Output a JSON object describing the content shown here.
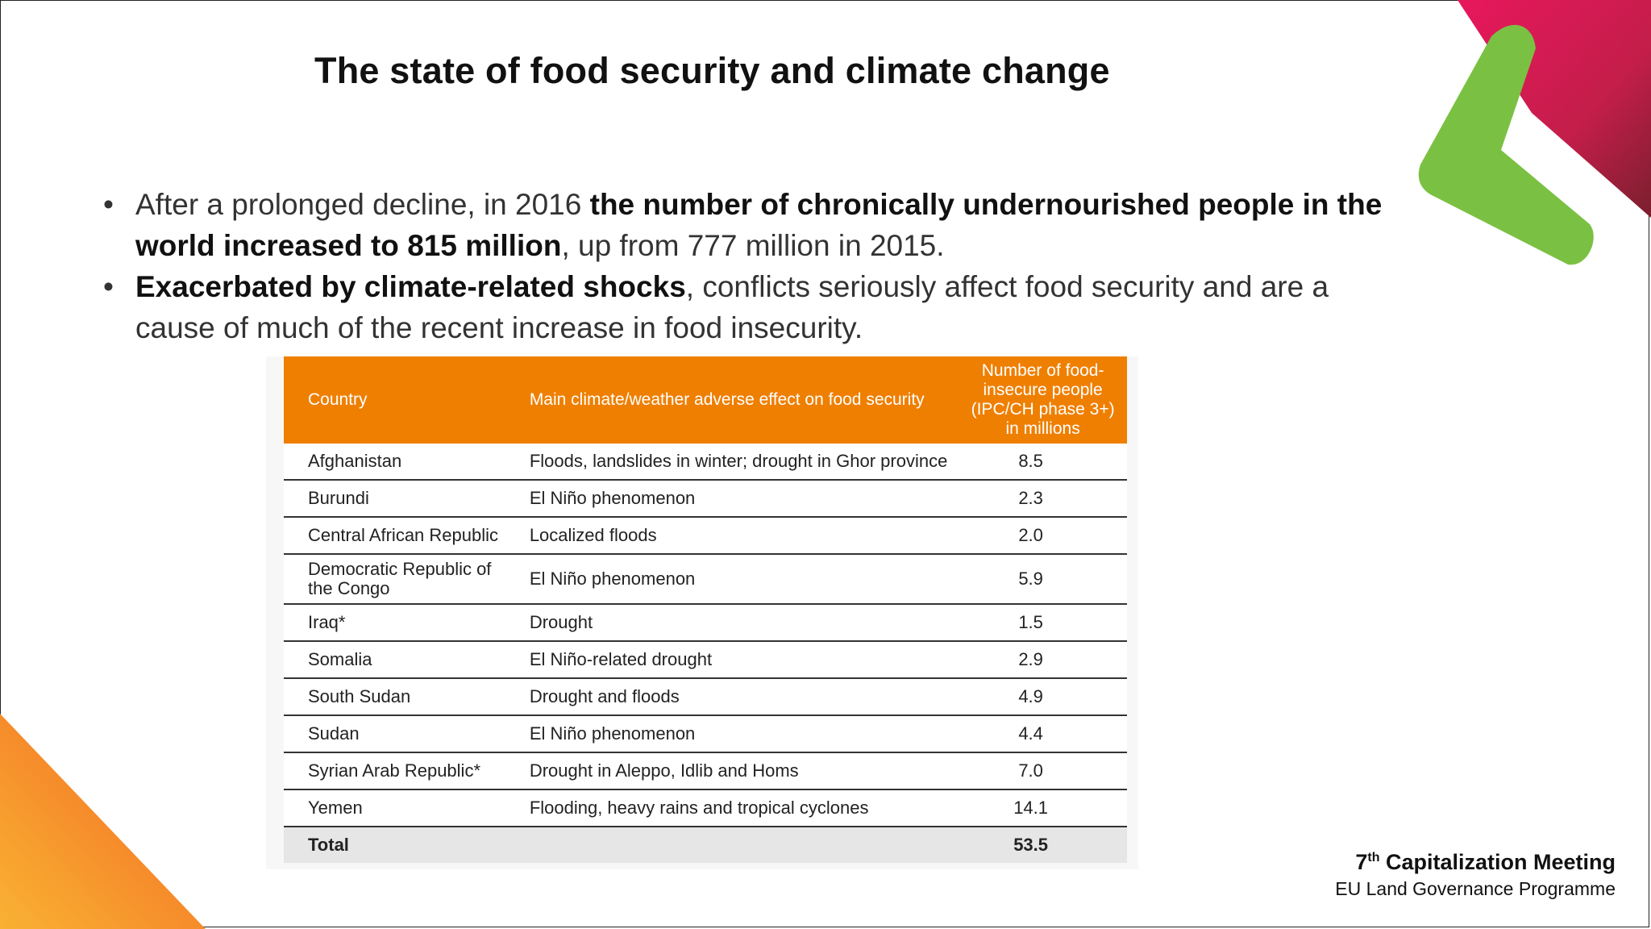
{
  "slide": {
    "title": "The state of food security and climate change",
    "bullets": [
      {
        "pre": "After a prolonged decline, in 2016 ",
        "strong": "the number of chronically undernourished people in the world increased to 815 million",
        "post": ", up from 777 million in 2015."
      },
      {
        "pre": "",
        "strong": "Exacerbated by climate-related shocks",
        "post": ", conflicts seriously affect food security and are a cause of much of the recent increase in food insecurity."
      }
    ]
  },
  "table": {
    "headers": {
      "country": "Country",
      "effect": "Main climate/weather adverse effect on food security",
      "number": "Number of food-insecure people (IPC/CH phase 3+) in millions"
    },
    "rows": [
      {
        "country": "Afghanistan",
        "effect": "Floods, landslides in winter; drought in Ghor province",
        "value": "8.5"
      },
      {
        "country": "Burundi",
        "effect": "El Niño phenomenon",
        "value": "2.3"
      },
      {
        "country": "Central African Republic",
        "effect": "Localized floods",
        "value": "2.0"
      },
      {
        "country": "Democratic Republic of the Congo",
        "effect": "El Niño phenomenon",
        "value": "5.9"
      },
      {
        "country": "Iraq*",
        "effect": "Drought",
        "value": "1.5"
      },
      {
        "country": "Somalia",
        "effect": "El Niño-related drought",
        "value": "2.9"
      },
      {
        "country": "South Sudan",
        "effect": "Drought and floods",
        "value": "4.9"
      },
      {
        "country": "Sudan",
        "effect": "El Niño phenomenon",
        "value": "4.4"
      },
      {
        "country": "Syrian Arab Republic*",
        "effect": "Drought in Aleppo, Idlib and Homs",
        "value": "7.0"
      },
      {
        "country": "Yemen",
        "effect": "Flooding, heavy rains and tropical cyclones",
        "value": "14.1"
      }
    ],
    "total": {
      "label": "Total",
      "value": "53.5"
    }
  },
  "footer": {
    "title_num": "7",
    "title_sup": "th",
    "title_rest": " Capitalization Meeting",
    "subtitle": "EU Land Governance Programme"
  },
  "colors": {
    "header_orange": "#ef7f00",
    "deco_green": "#7ac143",
    "deco_pink": "#e8175d",
    "deco_orange": "#f7941d"
  }
}
